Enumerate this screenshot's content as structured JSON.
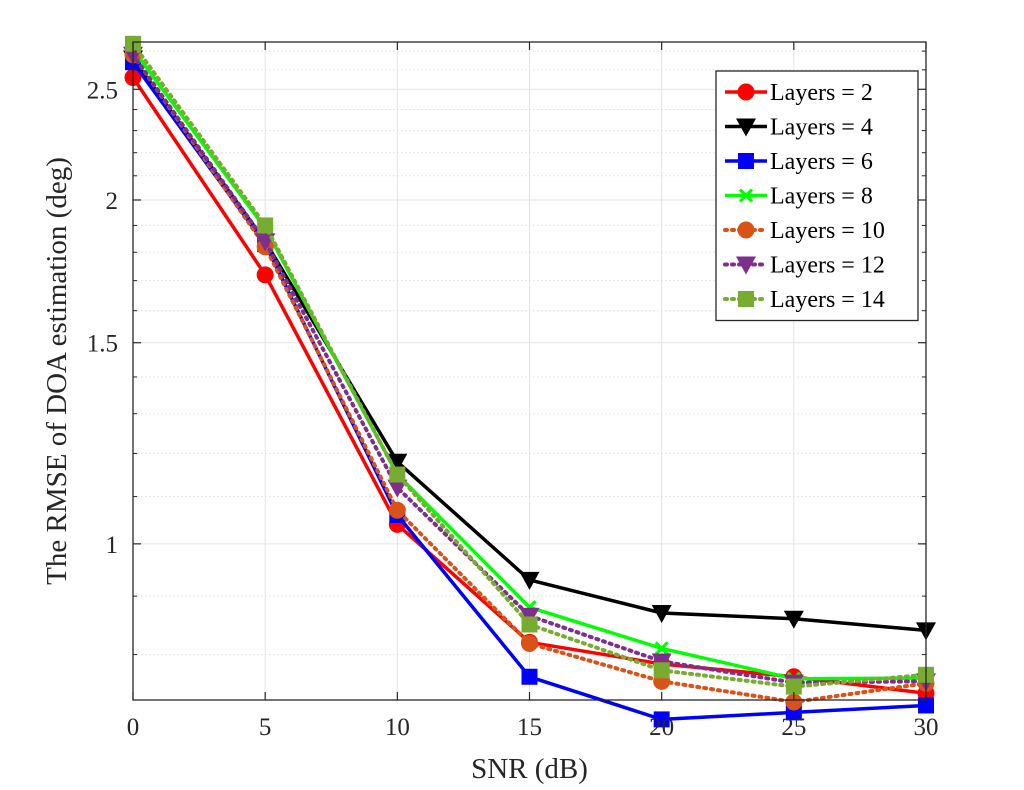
{
  "chart_data": {
    "type": "line",
    "xlabel": "SNR (dB)",
    "ylabel": "The RMSE of DOA estimation (deg)",
    "xlim": [
      0,
      30
    ],
    "ylim": [
      0.73,
      2.75
    ],
    "yscale": "log",
    "grid": true,
    "minor_grid": true,
    "legend_position": "top-right",
    "x": [
      0,
      5,
      10,
      15,
      20,
      25,
      30
    ],
    "xticks": [
      0,
      5,
      10,
      15,
      20,
      25,
      30
    ],
    "xtick_labels": [
      "0",
      "5",
      "10",
      "15",
      "20",
      "25",
      "30"
    ],
    "yticks": [
      1,
      1.5,
      2,
      2.5
    ],
    "ytick_labels": [
      "1",
      "1.5",
      "2",
      "2.5"
    ],
    "y_minor_ticks": [
      0.8,
      0.9,
      1.1,
      1.2,
      1.3,
      1.4,
      1.6,
      1.7,
      1.8,
      1.9,
      2.1,
      2.2,
      2.3,
      2.4,
      2.6,
      2.7
    ],
    "series": [
      {
        "name": "Layers = 2",
        "color": "#ff0000",
        "style": "solid",
        "marker": "circle",
        "values": [
          2.56,
          1.72,
          1.04,
          0.82,
          0.785,
          0.765,
          0.74
        ]
      },
      {
        "name": "Layers = 4",
        "color": "#000000",
        "style": "solid",
        "marker": "triangle-down",
        "values": [
          2.66,
          1.84,
          1.18,
          0.93,
          0.87,
          0.86,
          0.84
        ]
      },
      {
        "name": "Layers = 6",
        "color": "#0000ff",
        "style": "solid",
        "marker": "square",
        "values": [
          2.64,
          1.83,
          1.06,
          0.765,
          0.702,
          0.712,
          0.722
        ]
      },
      {
        "name": "Layers = 8",
        "color": "#00ff00",
        "style": "solid",
        "marker": "x",
        "values": [
          2.71,
          1.89,
          1.15,
          0.88,
          0.81,
          0.762,
          0.763
        ]
      },
      {
        "name": "Layers = 10",
        "color": "#d95319",
        "style": "dotted",
        "marker": "circle",
        "values": [
          2.68,
          1.82,
          1.07,
          0.818,
          0.758,
          0.727,
          0.755
        ]
      },
      {
        "name": "Layers = 12",
        "color": "#7e2f8e",
        "style": "dotted",
        "marker": "triangle-down",
        "values": [
          2.68,
          1.84,
          1.12,
          0.865,
          0.789,
          0.756,
          0.758
        ]
      },
      {
        "name": "Layers = 14",
        "color": "#77ac30",
        "style": "dotted",
        "marker": "square",
        "values": [
          2.74,
          1.9,
          1.15,
          0.85,
          0.775,
          0.75,
          0.768
        ]
      }
    ]
  }
}
